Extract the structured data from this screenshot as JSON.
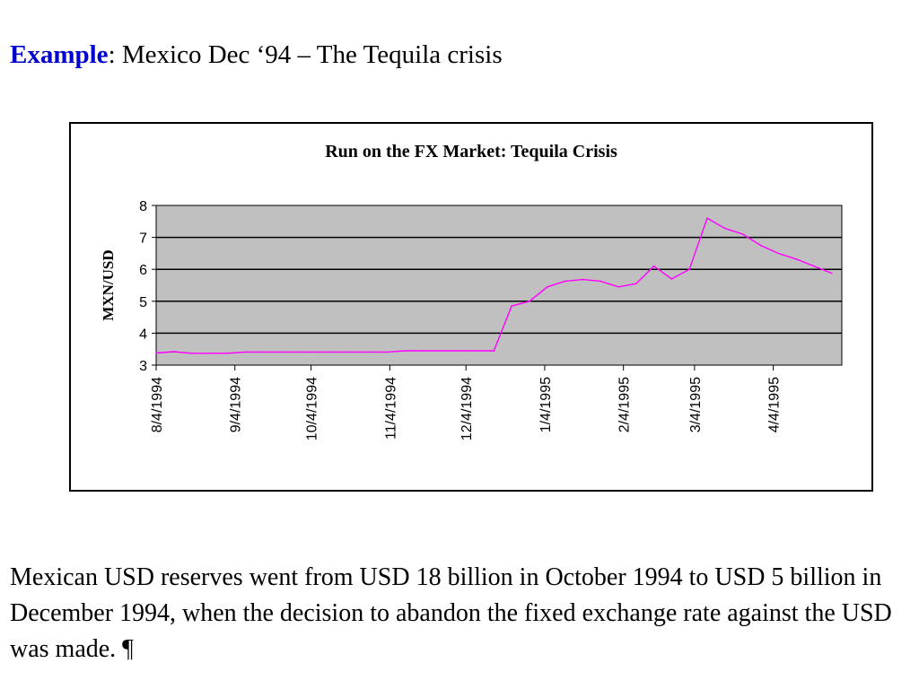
{
  "slide": {
    "title_prefix": "Example",
    "title_rest": ": Mexico Dec ‘94 – The Tequila crisis",
    "body": "Mexican USD reserves went from USD 18 billion in October 1994 to USD 5 billion in December 1994, when the decision to abandon the fixed exchange rate against the USD was made. ¶"
  },
  "colors": {
    "accent": "#0000cc",
    "plot_background": "#c0c0c0",
    "series_line": "#ff00ff"
  },
  "chart_data": {
    "type": "line",
    "title": "Run on the FX Market: Tequila Crisis",
    "xlabel": "",
    "ylabel": "MXN/USD",
    "ylim": [
      3,
      8
    ],
    "yticks": [
      "3",
      "4",
      "5",
      "6",
      "7",
      "8"
    ],
    "grid": "horizontal",
    "x_tick_labels": [
      "8/4/1994",
      "9/4/1994",
      "10/4/1994",
      "11/4/1994",
      "12/4/1994",
      "1/4/1995",
      "2/4/1995",
      "3/4/1995",
      "4/4/1995"
    ],
    "x_range": [
      "8/4/1994",
      "5/1/1995"
    ],
    "series": [
      {
        "x": [
          "8/4/1994",
          "8/11/1994",
          "8/18/1994",
          "8/25/1994",
          "9/1/1994",
          "9/8/1994",
          "9/15/1994",
          "9/22/1994",
          "9/29/1994",
          "10/6/1994",
          "10/13/1994",
          "10/20/1994",
          "10/27/1994",
          "11/3/1994",
          "11/10/1994",
          "11/17/1994",
          "11/24/1994",
          "12/1/1994",
          "12/8/1994",
          "12/15/1994",
          "12/22/1994",
          "12/29/1994",
          "1/5/1995",
          "1/12/1995",
          "1/19/1995",
          "1/26/1995",
          "2/2/1995",
          "2/9/1995",
          "2/16/1995",
          "2/23/1995",
          "3/2/1995",
          "3/9/1995",
          "3/16/1995",
          "3/23/1995",
          "3/30/1995",
          "4/6/1995",
          "4/13/1995",
          "4/20/1995",
          "4/27/1995"
        ],
        "values": [
          3.38,
          3.42,
          3.37,
          3.37,
          3.37,
          3.41,
          3.41,
          3.41,
          3.41,
          3.41,
          3.41,
          3.41,
          3.41,
          3.41,
          3.45,
          3.45,
          3.45,
          3.45,
          3.45,
          3.45,
          4.85,
          5.0,
          5.45,
          5.63,
          5.68,
          5.63,
          5.45,
          5.55,
          6.1,
          5.7,
          6.0,
          7.6,
          7.28,
          7.1,
          6.75,
          6.5,
          6.32,
          6.1,
          5.88
        ]
      }
    ]
  }
}
